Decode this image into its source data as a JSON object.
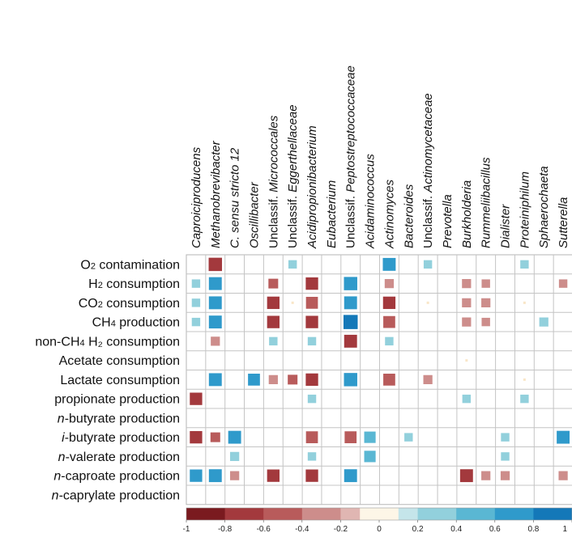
{
  "chart_data": {
    "type": "heatmap",
    "columns": [
      {
        "label": "Caproiciproducens",
        "italic": true,
        "prefix": ""
      },
      {
        "label": "Methanobrevibacter",
        "italic": true,
        "prefix": ""
      },
      {
        "label": "C. sensu stricto 12",
        "italic": true,
        "prefix": ""
      },
      {
        "label": "Oscillibacter",
        "italic": true,
        "prefix": ""
      },
      {
        "label": "Micrococcales",
        "italic": true,
        "prefix": "Unclassif. "
      },
      {
        "label": "Eggerthellaceae",
        "italic": true,
        "prefix": "Unclassif. "
      },
      {
        "label": "Acidipropionibacterium",
        "italic": true,
        "prefix": ""
      },
      {
        "label": "Eubacterium",
        "italic": true,
        "prefix": ""
      },
      {
        "label": "Peptostreptococcaceae",
        "italic": true,
        "prefix": "Unclassif. "
      },
      {
        "label": "Acidaminococcus",
        "italic": true,
        "prefix": ""
      },
      {
        "label": "Actinomyces",
        "italic": true,
        "prefix": ""
      },
      {
        "label": "Bacteroides",
        "italic": true,
        "prefix": ""
      },
      {
        "label": "Actinomycetaceae",
        "italic": true,
        "prefix": "Unclassif. "
      },
      {
        "label": "Prevotella",
        "italic": true,
        "prefix": ""
      },
      {
        "label": "Burkholderia",
        "italic": true,
        "prefix": ""
      },
      {
        "label": "Rummeliibacillus",
        "italic": true,
        "prefix": ""
      },
      {
        "label": "Dialister",
        "italic": true,
        "prefix": ""
      },
      {
        "label": "Proteiniphilum",
        "italic": true,
        "prefix": ""
      },
      {
        "label": "Sphaerochaeta",
        "italic": true,
        "prefix": ""
      },
      {
        "label": "Sutterella",
        "italic": true,
        "prefix": ""
      }
    ],
    "rows": [
      {
        "pre": "",
        "italic": "",
        "mid": "O",
        "sub": "2",
        "post": " contamination"
      },
      {
        "pre": "",
        "italic": "",
        "mid": "H",
        "sub": "2",
        "post": " consumption"
      },
      {
        "pre": "",
        "italic": "",
        "mid": "CO",
        "sub": "2",
        "post": " consumption"
      },
      {
        "pre": "",
        "italic": "",
        "mid": "CH",
        "sub": "4",
        "post": " production"
      },
      {
        "pre": "",
        "italic": "",
        "mid": "non-CH",
        "sub": "4",
        "post": " H₂ consumption"
      },
      {
        "pre": "",
        "italic": "",
        "mid": "Acetate consumption",
        "sub": "",
        "post": ""
      },
      {
        "pre": "",
        "italic": "",
        "mid": "Lactate consumption",
        "sub": "",
        "post": ""
      },
      {
        "pre": "",
        "italic": "",
        "mid": "propionate production",
        "sub": "",
        "post": ""
      },
      {
        "pre": "",
        "italic": "n",
        "mid": "-butyrate production",
        "sub": "",
        "post": ""
      },
      {
        "pre": "",
        "italic": "i",
        "mid": "-butyrate production",
        "sub": "",
        "post": ""
      },
      {
        "pre": "",
        "italic": "n",
        "mid": "-valerate production",
        "sub": "",
        "post": ""
      },
      {
        "pre": "",
        "italic": "n",
        "mid": "-caproate production",
        "sub": "",
        "post": ""
      },
      {
        "pre": "",
        "italic": "n",
        "mid": "-caprylate production",
        "sub": "",
        "post": ""
      }
    ],
    "values": [
      [
        0,
        -0.75,
        0,
        0,
        0,
        0.3,
        0,
        0,
        0,
        0,
        0.7,
        0,
        0.3,
        0,
        0,
        0,
        0,
        0.3,
        0,
        0
      ],
      [
        0.3,
        0.7,
        0,
        0,
        -0.4,
        0,
        -0.65,
        0,
        0.75,
        0,
        -0.35,
        0,
        0,
        0,
        -0.35,
        -0.3,
        0,
        0,
        0,
        -0.3
      ],
      [
        0.3,
        0.7,
        0,
        0,
        -0.65,
        -0.05,
        -0.6,
        0,
        0.7,
        0,
        -0.65,
        0,
        -0.05,
        0,
        -0.35,
        -0.35,
        0,
        -0.05,
        0,
        0
      ],
      [
        0.3,
        0.7,
        0,
        0,
        -0.65,
        0,
        -0.65,
        0,
        0.85,
        0,
        -0.6,
        0,
        0,
        0,
        -0.35,
        -0.3,
        0,
        0,
        0.35,
        0
      ],
      [
        0,
        -0.35,
        0,
        0,
        0.3,
        0,
        0.3,
        0,
        -0.7,
        0,
        0.3,
        0,
        0,
        0,
        0,
        0,
        0,
        0,
        0,
        0
      ],
      [
        0,
        0,
        0,
        0,
        0,
        0,
        0,
        0,
        0,
        0,
        0,
        0,
        0,
        0,
        -0.05,
        0,
        0,
        0,
        0,
        0
      ],
      [
        0,
        0.7,
        0,
        0.6,
        -0.35,
        -0.4,
        -0.65,
        0,
        0.75,
        0,
        -0.6,
        0,
        -0.35,
        0,
        0,
        0,
        0,
        -0.05,
        0,
        0
      ],
      [
        -0.65,
        0,
        0,
        0,
        0,
        0,
        0.3,
        0,
        0,
        0,
        0,
        0,
        0,
        0,
        0.3,
        0,
        0,
        0.3,
        0,
        0
      ],
      [
        0,
        0,
        0,
        0,
        0,
        0,
        0,
        0,
        0,
        0,
        0,
        0,
        0,
        0,
        0,
        0,
        0,
        0,
        0,
        0
      ],
      [
        -0.65,
        -0.4,
        0.7,
        0,
        0,
        0,
        -0.6,
        0,
        -0.6,
        0.55,
        0,
        0.3,
        0,
        0,
        0,
        0,
        0.3,
        0,
        0,
        0.7
      ],
      [
        0,
        0,
        0.35,
        0,
        0,
        0,
        0.3,
        0,
        0,
        0.55,
        0,
        0,
        0,
        0,
        0,
        0,
        0.3,
        0,
        0,
        0
      ],
      [
        0.65,
        0.7,
        -0.35,
        0,
        -0.65,
        0,
        -0.65,
        0,
        0.7,
        0,
        0,
        0,
        0,
        0,
        -0.7,
        -0.35,
        -0.35,
        0,
        0,
        -0.35
      ],
      [
        0,
        0,
        0,
        0,
        0,
        0,
        0,
        0,
        0,
        0,
        0,
        0,
        0,
        0,
        0,
        0,
        0,
        0,
        0,
        0
      ]
    ],
    "colorbar": {
      "range": [
        -1,
        1
      ],
      "tick_labels": [
        "-1",
        "-0.8",
        "-0.6",
        "-0.4",
        "-0.2",
        "0",
        "0.2",
        "0.4",
        "0.6",
        "0.8",
        "1"
      ],
      "colors": [
        "#7a1a1f",
        "#a3393d",
        "#b85b5b",
        "#cd8d8b",
        "#e0b6b2",
        "#fdf6e7",
        "#c5e5ea",
        "#92d0dc",
        "#5ab7d3",
        "#2f9acb",
        "#1478b8"
      ]
    }
  }
}
